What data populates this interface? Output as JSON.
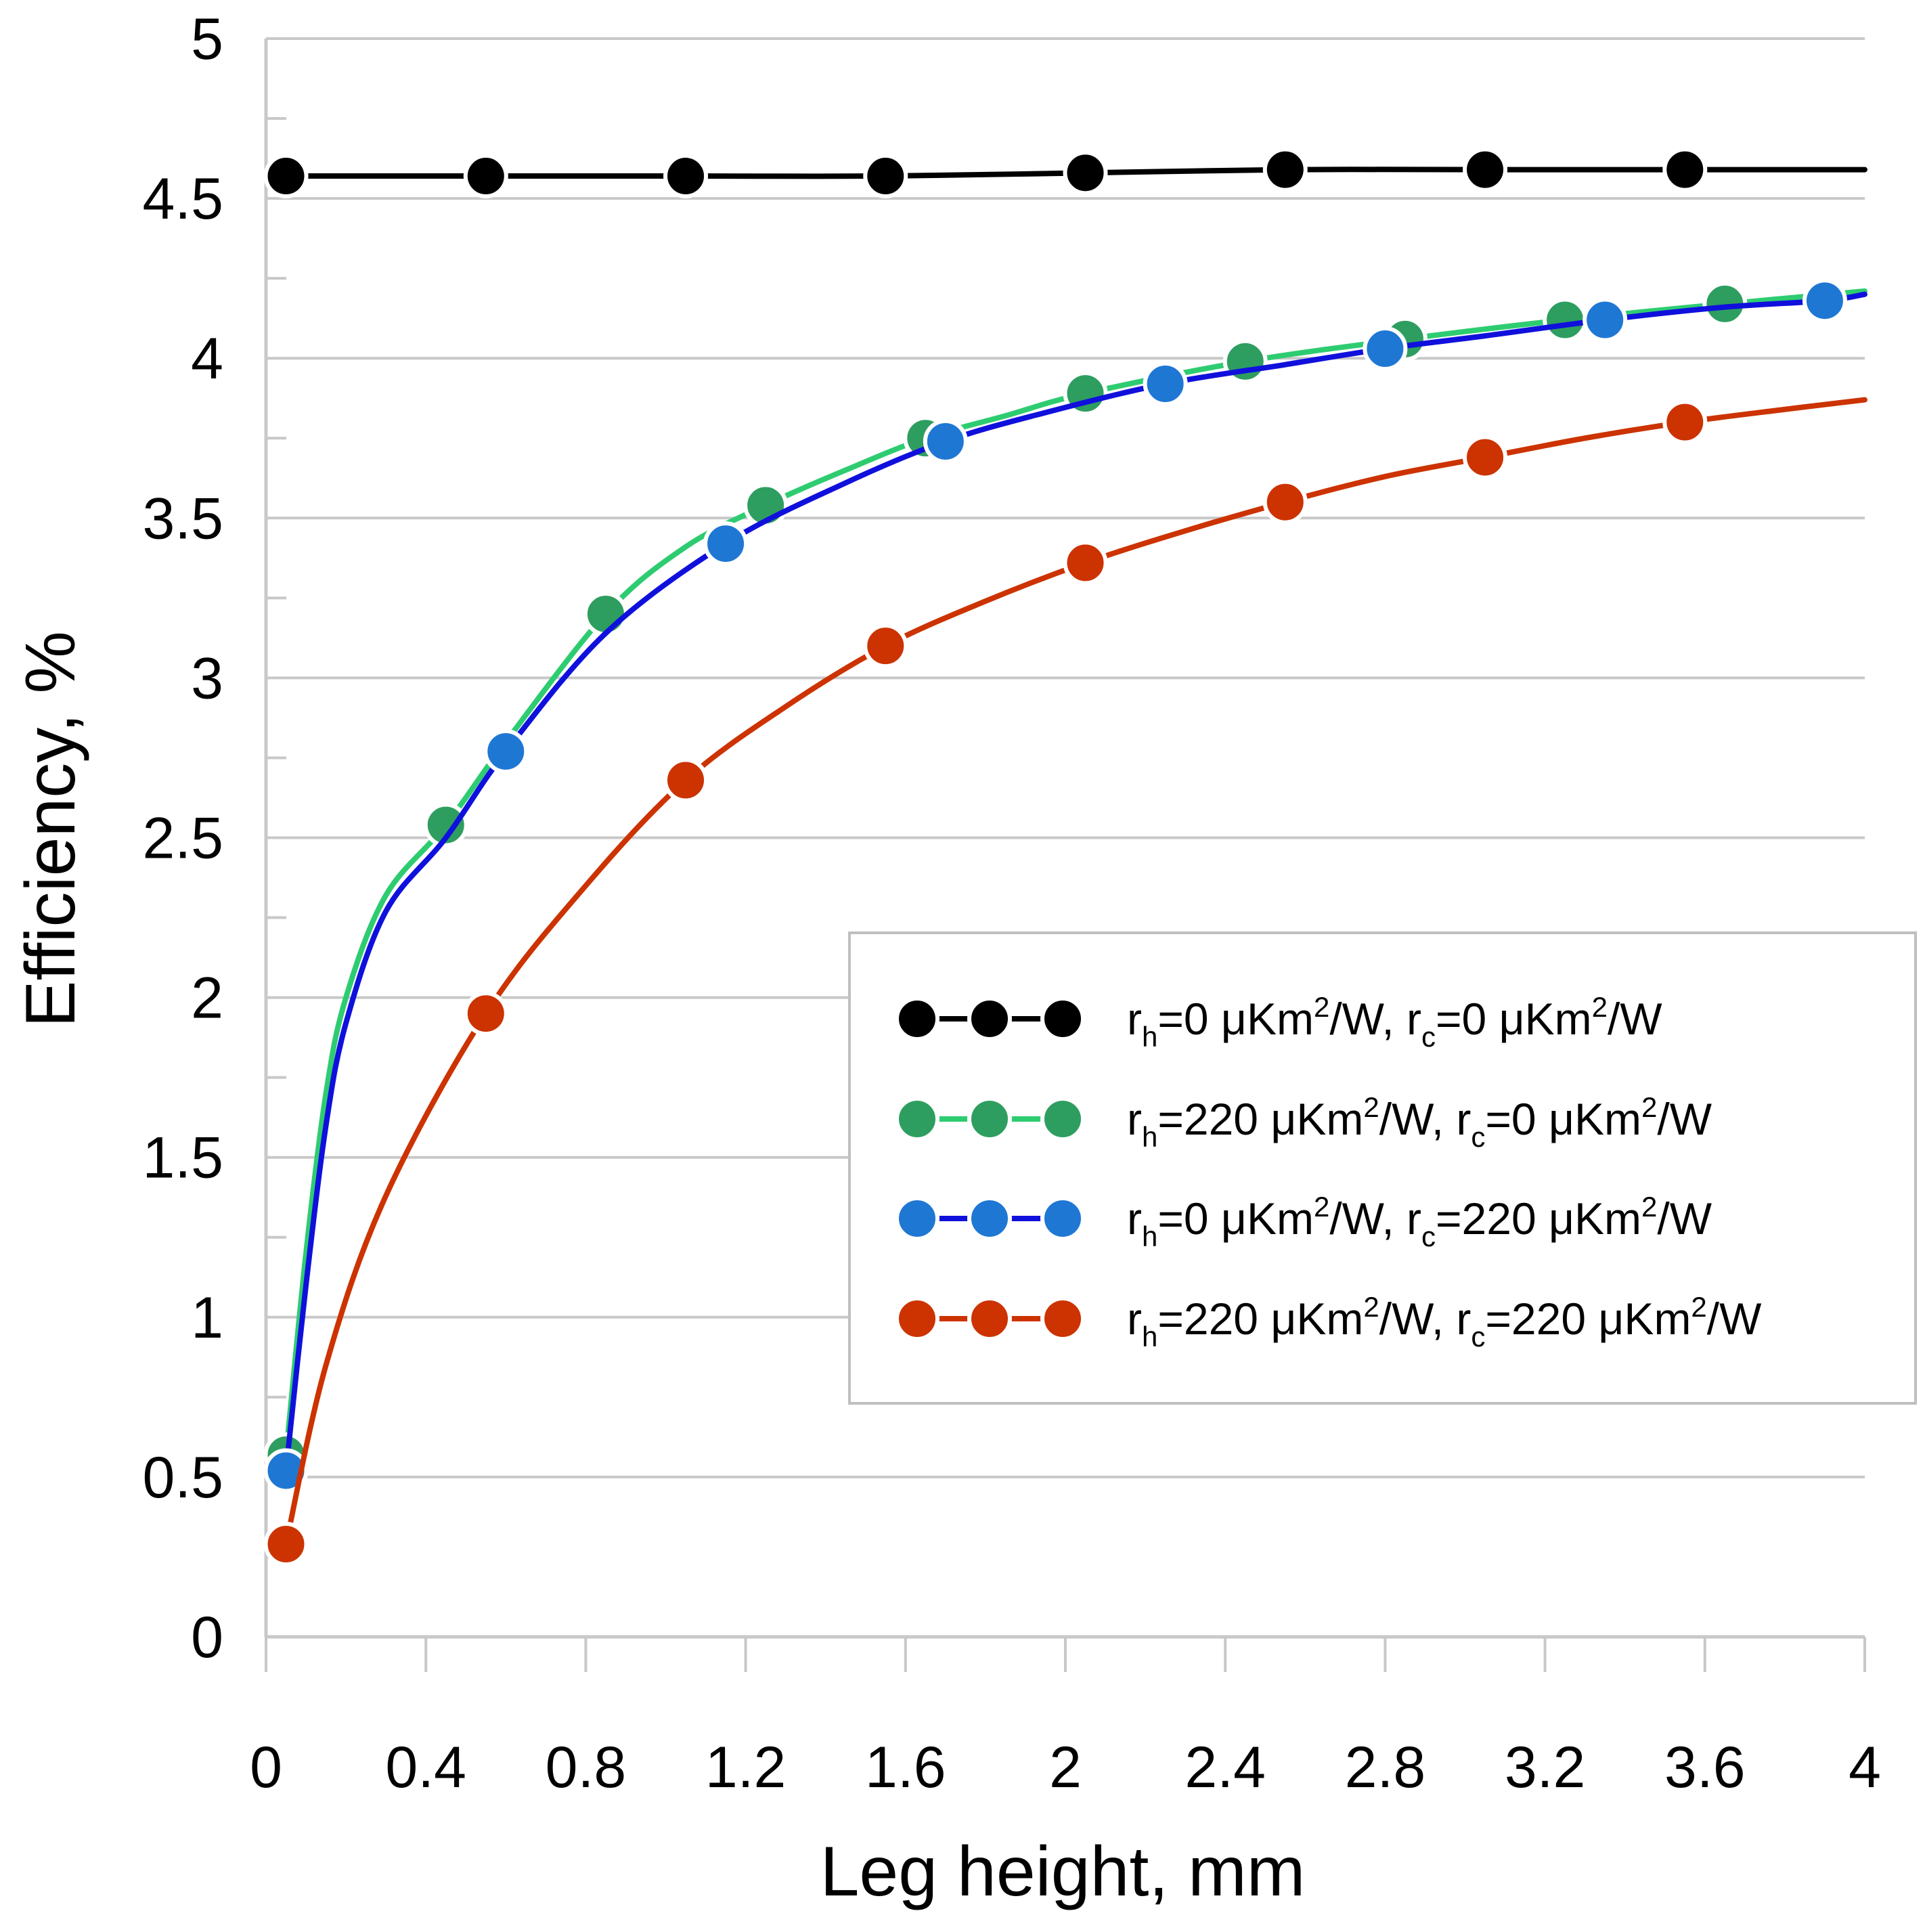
{
  "chart_data": {
    "type": "line",
    "title": "",
    "xlabel": "Leg height, mm",
    "ylabel": "Efficiency, %",
    "xlim": [
      0,
      4
    ],
    "ylim": [
      0,
      5
    ],
    "x_ticks": [
      "0",
      "0.4",
      "0.8",
      "1.2",
      "1.6",
      "2",
      "2.4",
      "2.8",
      "3.2",
      "3.6",
      "4"
    ],
    "y_ticks": [
      "0",
      "0.5",
      "1",
      "1.5",
      "2",
      "2.5",
      "3",
      "3.5",
      "4",
      "4.5",
      "5"
    ],
    "grid": "horizontal",
    "legend_position": "center-right",
    "series": [
      {
        "name": "rh=0 μKm²/W, rc=0 μKm²/W",
        "legend": {
          "r1": "r",
          "s1": "h",
          "m1": "=0 μKm",
          "sup1": "2",
          "m2": "/W, ",
          "r2": "r",
          "s2": "c",
          "m3": "=0 μKm",
          "sup2": "2",
          "m4": "/W"
        },
        "line_color": "#000000",
        "marker_color": "#000000",
        "curve": {
          "x": [
            0.05,
            0.55,
            1.05,
            1.55,
            2.05,
            2.55,
            3.05,
            3.55,
            4.0
          ],
          "y": [
            4.57,
            4.57,
            4.57,
            4.57,
            4.58,
            4.59,
            4.59,
            4.59,
            4.59
          ]
        },
        "markers": {
          "x": [
            0.05,
            0.55,
            1.05,
            1.55,
            2.05,
            2.55,
            3.05,
            3.55
          ],
          "y": [
            4.57,
            4.57,
            4.57,
            4.57,
            4.58,
            4.59,
            4.59,
            4.59
          ]
        }
      },
      {
        "name": "rh=220 μKm²/W, rc=0 μKm²/W",
        "legend": {
          "r1": "r",
          "s1": "h",
          "m1": "=220 μKm",
          "sup1": "2",
          "m2": "/W, ",
          "r2": "r",
          "s2": "c",
          "m3": "=0 μKm",
          "sup2": "2",
          "m4": "/W"
        },
        "line_color": "#2ecc71",
        "marker_color": "#2e9e60",
        "curve": {
          "x": [
            0.05,
            0.1,
            0.15,
            0.2,
            0.3,
            0.45,
            0.6,
            0.85,
            1.05,
            1.25,
            1.45,
            1.65,
            1.85,
            2.05,
            2.45,
            2.85,
            3.25,
            3.65,
            4.0
          ],
          "y": [
            0.57,
            1.2,
            1.7,
            2.0,
            2.32,
            2.54,
            2.8,
            3.2,
            3.41,
            3.54,
            3.65,
            3.75,
            3.82,
            3.89,
            3.99,
            4.06,
            4.12,
            4.17,
            4.21
          ]
        },
        "markers": {
          "x": [
            0.05,
            0.45,
            0.85,
            1.25,
            1.65,
            2.05,
            2.45,
            2.85,
            3.25,
            3.65
          ],
          "y": [
            0.57,
            2.54,
            3.2,
            3.54,
            3.75,
            3.89,
            3.99,
            4.06,
            4.12,
            4.17
          ]
        }
      },
      {
        "name": "rh=0 μKm²/W, rc=220 μKm²/W",
        "legend": {
          "r1": "r",
          "s1": "h",
          "m1": "=0 μKm",
          "sup1": "2",
          "m2": "/W, ",
          "r2": "r",
          "s2": "c",
          "m3": "=220 μKm",
          "sup2": "2",
          "m4": "/W"
        },
        "line_color": "#1010dd",
        "marker_color": "#1f77d4",
        "curve": {
          "x": [
            0.05,
            0.1,
            0.15,
            0.2,
            0.3,
            0.45,
            0.6,
            0.85,
            1.15,
            1.45,
            1.7,
            1.95,
            2.25,
            2.55,
            2.8,
            3.05,
            3.35,
            3.65,
            3.9,
            4.0
          ],
          "y": [
            0.52,
            1.1,
            1.6,
            1.92,
            2.27,
            2.5,
            2.77,
            3.14,
            3.42,
            3.61,
            3.74,
            3.83,
            3.92,
            3.98,
            4.03,
            4.07,
            4.12,
            4.16,
            4.18,
            4.2
          ]
        },
        "markers": {
          "x": [
            0.05,
            0.6,
            1.15,
            1.7,
            2.25,
            2.8,
            3.35,
            3.9
          ],
          "y": [
            0.52,
            2.77,
            3.42,
            3.74,
            3.92,
            4.03,
            4.12,
            4.18
          ]
        }
      },
      {
        "name": "rh=220 μKm²/W, rc=220 μKm²/W",
        "legend": {
          "r1": "r",
          "s1": "h",
          "m1": "=220 μKm",
          "sup1": "2",
          "m2": "/W, ",
          "r2": "r",
          "s2": "c",
          "m3": "=220 μKm",
          "sup2": "2",
          "m4": "/W"
        },
        "line_color": "#cc3300",
        "marker_color": "#cc3300",
        "curve": {
          "x": [
            0.05,
            0.15,
            0.3,
            0.55,
            0.8,
            1.05,
            1.3,
            1.55,
            1.8,
            2.05,
            2.3,
            2.55,
            2.8,
            3.05,
            3.3,
            3.55,
            3.8,
            4.0
          ],
          "y": [
            0.29,
            0.85,
            1.38,
            1.95,
            2.35,
            2.68,
            2.91,
            3.1,
            3.24,
            3.36,
            3.46,
            3.55,
            3.63,
            3.69,
            3.75,
            3.8,
            3.84,
            3.87
          ]
        },
        "markers": {
          "x": [
            0.05,
            0.55,
            1.05,
            1.55,
            2.05,
            2.55,
            3.05,
            3.55
          ],
          "y": [
            0.29,
            1.95,
            2.68,
            3.1,
            3.36,
            3.55,
            3.69,
            3.8
          ]
        }
      }
    ]
  }
}
